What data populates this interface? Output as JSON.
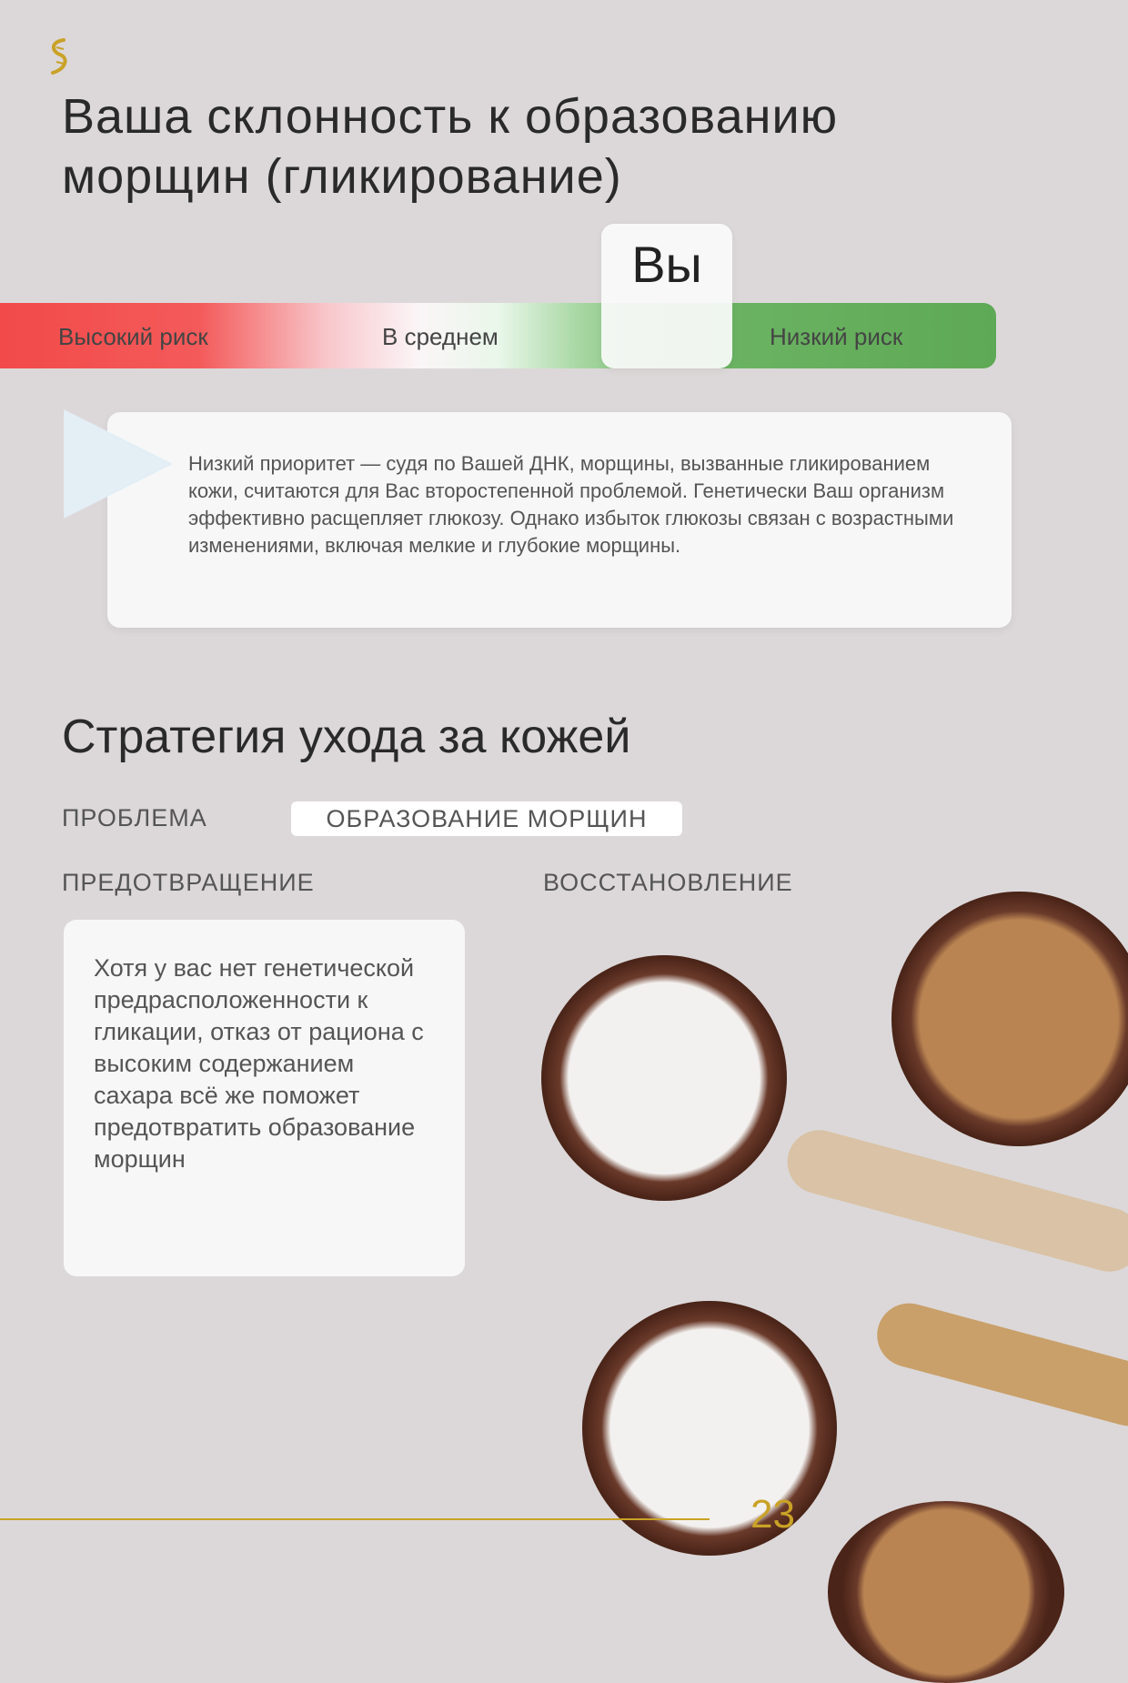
{
  "title": "Ваша склонность к образованию морщин (гликирование)",
  "scale": {
    "high": "Высокий риск",
    "average": "В среднем",
    "low": "Низкий риск",
    "you": "Вы",
    "result": "Низкий риск"
  },
  "callout": "Низкий приоритет — судя по Вашей ДНК, морщины, вызванные гликированием кожи, считаются для Вас второстепенной проблемой. Генетически Ваш организм эффективно расщепляет глюкозу. Однако избыток глюкозы связан с возрастными изменениями, включая мелкие и глубокие морщины.",
  "strategy": {
    "heading": "Стратегия ухода за кожей",
    "problem_label": "ПРОБЛЕМА",
    "problem_value": "ОБРАЗОВАНИЕ МОРЩИН",
    "prevention_label": "ПРЕДОТВРАЩЕНИЕ",
    "recovery_label": "ВОССТАНОВЛЕНИЕ",
    "prevention_text": "Хотя у вас нет генетической предрасположенности к гликации, отказ от рациона с высоким содержанием сахара всё же поможет предотвратить образование морщин"
  },
  "page_number": "23",
  "colors": {
    "high": "#f24a4a",
    "low": "#5ea955",
    "accent": "#c9a227"
  }
}
